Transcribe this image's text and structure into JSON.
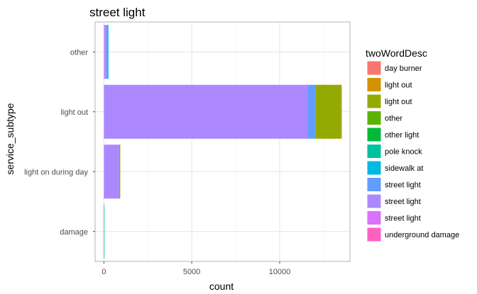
{
  "chart_data": {
    "type": "bar",
    "orientation": "horizontal",
    "stacked": true,
    "title": "street light",
    "xlabel": "count",
    "ylabel": "service_subtype",
    "xlim": [
      -500,
      14000
    ],
    "x_ticks": [
      0,
      5000,
      10000
    ],
    "x_tick_labels": [
      "0",
      "5000",
      "10000"
    ],
    "grid": true,
    "legend_position": "right",
    "legend_title": "twoWordDesc",
    "categories": [
      "other",
      "light out",
      "light on during day",
      "damage"
    ],
    "series": [
      {
        "name": "day burner",
        "color": "#F8766D",
        "values": [
          0,
          40,
          0,
          0
        ]
      },
      {
        "name": "light out",
        "color": "#D39200",
        "values": [
          0,
          0,
          0,
          0
        ]
      },
      {
        "name": "light out",
        "color": "#93AA00",
        "values": [
          0,
          1450,
          60,
          0
        ]
      },
      {
        "name": "other",
        "color": "#5BB300",
        "values": [
          0,
          0,
          0,
          0
        ]
      },
      {
        "name": "other light",
        "color": "#00BA38",
        "values": [
          0,
          0,
          0,
          0
        ]
      },
      {
        "name": "pole knock",
        "color": "#00C19F",
        "values": [
          0,
          0,
          0,
          30
        ]
      },
      {
        "name": "sidewalk  at",
        "color": "#00B9E3",
        "values": [
          60,
          0,
          0,
          0
        ]
      },
      {
        "name": "street light",
        "color": "#619CFF",
        "values": [
          60,
          450,
          0,
          0
        ]
      },
      {
        "name": "street light",
        "color": "#AC88FF",
        "values": [
          100,
          11600,
          870,
          0
        ]
      },
      {
        "name": "street light",
        "color": "#DB72FB",
        "values": [
          40,
          0,
          0,
          0
        ]
      },
      {
        "name": "underground damage",
        "color": "#FF61C3",
        "values": [
          0,
          0,
          0,
          0
        ]
      }
    ],
    "stack_order_right_to_left": true
  }
}
